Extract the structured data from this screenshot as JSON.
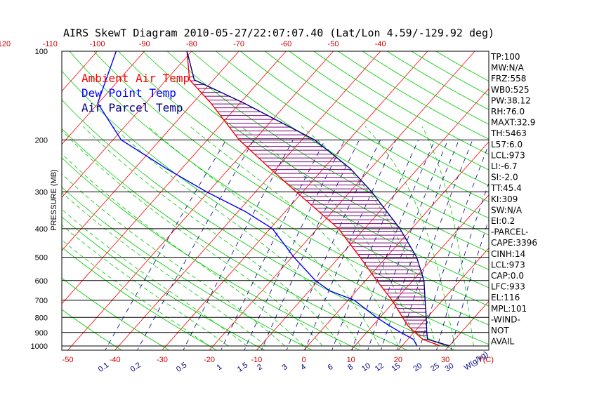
{
  "chart_data": {
    "type": "line",
    "title": "AIRS SkewT Diagram 2010-05-27/22:07:07.40 (Lat/Lon 4.59/-129.92 deg)",
    "ylabel": "PRESSURE (MB)",
    "xlabel": "T(C)",
    "mixing_ratio_label": "W(g/kg)",
    "pressure_ticks": [
      100,
      200,
      300,
      400,
      500,
      600,
      700,
      800,
      900,
      1000
    ],
    "bottom_temp_ticks": [
      -50,
      -40,
      -30,
      -20,
      -10,
      0,
      10,
      20,
      30
    ],
    "top_temp_ticks": [
      -120,
      -110,
      -100,
      -90,
      -80,
      -70,
      -60,
      -50,
      -40
    ],
    "mixing_ratio_ticks": [
      "0.1",
      "0.2",
      "0.5",
      "1",
      "1.5",
      "2",
      "3",
      "4",
      "6",
      "8",
      "10",
      "12",
      "15",
      "20",
      "25",
      "30"
    ],
    "legend": [
      {
        "name": "Ambient Air Temp",
        "color": "#ff0000"
      },
      {
        "name": "Dew Point Temp",
        "color": "#0000ff"
      },
      {
        "name": "Air Parcel Temp",
        "color": "#000080"
      }
    ],
    "series": [
      {
        "name": "Ambient Air Temp",
        "color": "#ff0000",
        "points": [
          [
            1000,
            29
          ],
          [
            950,
            24
          ],
          [
            900,
            21
          ],
          [
            850,
            18
          ],
          [
            800,
            15.5
          ],
          [
            700,
            10
          ],
          [
            600,
            3
          ],
          [
            500,
            -5
          ],
          [
            400,
            -15
          ],
          [
            300,
            -31
          ],
          [
            250,
            -41
          ],
          [
            200,
            -53
          ],
          [
            150,
            -66
          ],
          [
            125,
            -75
          ],
          [
            100,
            -81
          ]
        ]
      },
      {
        "name": "Dew Point Temp",
        "color": "#0000ff",
        "points": [
          [
            1000,
            24
          ],
          [
            950,
            22
          ],
          [
            900,
            18
          ],
          [
            850,
            14
          ],
          [
            800,
            10
          ],
          [
            700,
            2
          ],
          [
            650,
            -5
          ],
          [
            600,
            -10
          ],
          [
            500,
            -19
          ],
          [
            400,
            -29
          ],
          [
            350,
            -38
          ],
          [
            300,
            -50
          ],
          [
            250,
            -63
          ],
          [
            200,
            -78
          ],
          [
            150,
            -90
          ],
          [
            100,
            -96
          ]
        ]
      },
      {
        "name": "Air Parcel Temp",
        "color": "#000080",
        "points": [
          [
            1000,
            31
          ],
          [
            950,
            25
          ],
          [
            900,
            23.5
          ],
          [
            800,
            20.5
          ],
          [
            700,
            17
          ],
          [
            600,
            13
          ],
          [
            500,
            7
          ],
          [
            400,
            -2
          ],
          [
            300,
            -15
          ],
          [
            250,
            -24
          ],
          [
            200,
            -37
          ],
          [
            150,
            -59
          ],
          [
            125,
            -74
          ],
          [
            100,
            -81
          ]
        ]
      }
    ],
    "info_labels": [
      "TP:100",
      "MW:N/A",
      "FRZ:558",
      "WB0:525",
      "PW:38.12",
      "RH:76.0",
      "MAXT:32.9",
      "TH:5463",
      "L57:6.0",
      "LCL:973",
      "LI:-6.7",
      "SI:-2.0",
      "TT:45.4",
      "KI:309",
      "SW:N/A",
      "EI:0.2",
      "-PARCEL-",
      "CAPE:3396",
      "CINH:14",
      "LCL:973",
      "CAP:0.0",
      "LFC:933",
      "EL:116",
      "MPL:101",
      "-WIND-",
      "NOT",
      "AVAIL"
    ],
    "colors": {
      "isotherm": "#ff0000",
      "dry_adiabat": "#00cc00",
      "moist_adiabat": "#00cc00",
      "mixing_ratio": "#000080",
      "cape_hatch": "#800080"
    }
  }
}
